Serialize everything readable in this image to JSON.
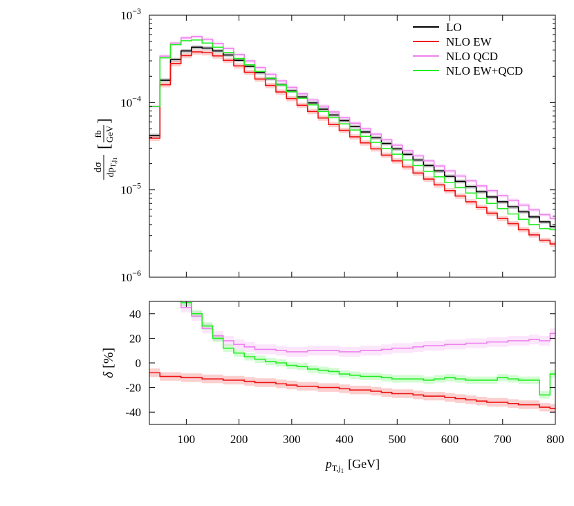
{
  "chart_data": [
    {
      "type": "line",
      "step": true,
      "x_edges": [
        30,
        50,
        70,
        90,
        110,
        130,
        150,
        170,
        190,
        210,
        230,
        250,
        270,
        290,
        310,
        330,
        350,
        370,
        390,
        410,
        430,
        450,
        470,
        490,
        510,
        530,
        550,
        570,
        590,
        610,
        630,
        650,
        670,
        690,
        710,
        730,
        750,
        770,
        790,
        800
      ],
      "xlim": [
        30,
        800
      ],
      "xticks": [
        100,
        200,
        300,
        400,
        500,
        600,
        700,
        800
      ],
      "ylim": [
        1e-06,
        0.001
      ],
      "yscale": "log",
      "ytick_labels": [
        {
          "base": "10",
          "exp": "-3",
          "value": 0.001
        },
        {
          "base": "10",
          "exp": "-4",
          "value": 0.0001
        },
        {
          "base": "10",
          "exp": "-5",
          "value": 1e-05
        },
        {
          "base": "10",
          "exp": "-6",
          "value": 1e-06
        }
      ],
      "ylabel": {
        "num": "dσ",
        "den": "dp",
        "den_sub": "T,j",
        "den_subsub": "1",
        "unit_num": "fb",
        "unit_den": "GeV"
      },
      "legend_position": "top-right",
      "series": [
        {
          "name": "LO",
          "color": "#000000",
          "values": [
            4.2e-05,
            0.00018,
            0.00031,
            0.00039,
            0.00043,
            0.00042,
            0.00039,
            0.00035,
            0.000305,
            0.00026,
            0.00022,
            0.000188,
            0.00016,
            0.000136,
            0.000116,
            9.9e-05,
            8.4e-05,
            7.2e-05,
            6.2e-05,
            5.3e-05,
            4.6e-05,
            3.95e-05,
            3.4e-05,
            2.95e-05,
            2.55e-05,
            2.2e-05,
            1.9e-05,
            1.65e-05,
            1.43e-05,
            1.25e-05,
            1.09e-05,
            9.5e-06,
            8.3e-06,
            7.3e-06,
            6.4e-06,
            5.6e-06,
            4.9e-06,
            4.3e-06,
            3.8e-06
          ],
          "band": 0.05
        },
        {
          "name": "NLO EW",
          "color": "#ee1111",
          "values": [
            3.9e-05,
            0.00016,
            0.00028,
            0.000345,
            0.00038,
            0.000372,
            0.000342,
            0.000304,
            0.000263,
            0.000222,
            0.000186,
            0.000157,
            0.000132,
            0.000111,
            9.3e-05,
            7.9e-05,
            6.65e-05,
            5.6e-05,
            4.8e-05,
            4.05e-05,
            3.45e-05,
            2.95e-05,
            2.5e-05,
            2.15e-05,
            1.83e-05,
            1.56e-05,
            1.33e-05,
            1.14e-05,
            9.8e-06,
            8.5e-06,
            7.3e-06,
            6.3e-06,
            5.4e-06,
            4.7e-06,
            4.1e-06,
            3.5e-06,
            3.05e-06,
            2.65e-06,
            2.4e-06
          ],
          "band": 0.07
        },
        {
          "name": "NLO QCD",
          "color": "#ee82ee",
          "values": [
            9e-05,
            0.00034,
            0.00048,
            0.00055,
            0.00057,
            0.00053,
            0.000475,
            0.000415,
            0.000355,
            0.0003,
            0.000252,
            0.000211,
            0.000177,
            0.000149,
            0.000126,
            0.000107,
            9.1e-05,
            7.8e-05,
            6.7e-05,
            5.8e-05,
            5e-05,
            4.35e-05,
            3.75e-05,
            3.25e-05,
            2.8e-05,
            2.45e-05,
            2.15e-05,
            1.88e-05,
            1.65e-05,
            1.44e-05,
            1.27e-05,
            1.11e-05,
            9.8e-06,
            8.6e-06,
            7.6e-06,
            6.7e-06,
            5.9e-06,
            5.2e-06,
            4.7e-06
          ],
          "band": 0.05
        },
        {
          "name": "NLO EW+QCD",
          "color": "#22ee22",
          "values": [
            9e-05,
            0.000325,
            0.00046,
            0.00051,
            0.00052,
            0.00048,
            0.00043,
            0.000375,
            0.00032,
            0.00027,
            0.000227,
            0.00019,
            0.000159,
            0.000133,
            0.000112,
            9.4e-05,
            7.9e-05,
            6.7e-05,
            5.7e-05,
            4.85e-05,
            4.1e-05,
            3.5e-05,
            2.98e-05,
            2.56e-05,
            2.2e-05,
            1.9e-05,
            1.63e-05,
            1.41e-05,
            1.22e-05,
            1.06e-05,
            9.2e-06,
            8e-06,
            7e-06,
            6.1e-06,
            5.3e-06,
            4.6e-06,
            4e-06,
            3.6e-06,
            3.5e-06
          ],
          "band": 0.0
        }
      ]
    },
    {
      "type": "line",
      "step": true,
      "x_edges": [
        30,
        50,
        70,
        90,
        110,
        130,
        150,
        170,
        190,
        210,
        230,
        250,
        270,
        290,
        310,
        330,
        350,
        370,
        390,
        410,
        430,
        450,
        470,
        490,
        510,
        530,
        550,
        570,
        590,
        610,
        630,
        650,
        670,
        690,
        710,
        730,
        750,
        770,
        790,
        800
      ],
      "xlim": [
        30,
        800
      ],
      "ylim": [
        -50,
        50
      ],
      "yticks": [
        40,
        20,
        0,
        -20,
        -40
      ],
      "ytick_labels": [
        "40",
        "20",
        "0",
        "-20",
        "-40"
      ],
      "xticks": [
        100,
        200,
        300,
        400,
        500,
        600,
        700,
        800
      ],
      "xtick_labels": [
        "100",
        "200",
        "300",
        "400",
        "500",
        "600",
        "700",
        "800"
      ],
      "ylabel": {
        "symbol": "δ",
        "unit": "[%]"
      },
      "xlabel": {
        "main": "p",
        "sub": "T,j",
        "subsub": "1",
        "unit": "[GeV]"
      },
      "series": [
        {
          "name": "NLO EW",
          "color": "#ee1111",
          "values": [
            -8,
            -11,
            -11,
            -12,
            -12,
            -13,
            -13,
            -14,
            -14,
            -15,
            -16,
            -16,
            -17,
            -18,
            -19,
            -19,
            -20,
            -20,
            -21,
            -22,
            -22,
            -23,
            -24,
            -25,
            -25,
            -26,
            -27,
            -27,
            -28,
            -29,
            -30,
            -31,
            -32,
            -32,
            -33,
            -34,
            -34,
            -36,
            -37
          ],
          "band": 3.5
        },
        {
          "name": "NLO QCD",
          "color": "#ee82ee",
          "values": [
            60,
            60,
            60,
            45,
            38,
            28,
            22,
            18,
            15,
            13,
            11,
            11,
            10,
            9,
            9,
            10,
            10,
            10,
            9,
            9,
            10,
            10,
            11,
            12,
            12,
            13,
            14,
            14,
            15,
            15,
            16,
            16,
            17,
            17,
            18,
            18,
            19,
            18,
            24
          ],
          "band": 4
        },
        {
          "name": "NLO EW+QCD",
          "color": "#22ee22",
          "values": [
            60,
            60,
            60,
            49,
            40,
            30,
            20,
            12,
            8,
            5,
            3,
            1,
            0,
            -2,
            -3,
            -5,
            -6,
            -7,
            -9,
            -10,
            -11,
            -11,
            -12,
            -13,
            -13,
            -13,
            -14,
            -13,
            -12,
            -13,
            -14,
            -14,
            -14,
            -12,
            -13,
            -14,
            -14,
            -26,
            -9
          ],
          "band": 3
        }
      ]
    }
  ]
}
